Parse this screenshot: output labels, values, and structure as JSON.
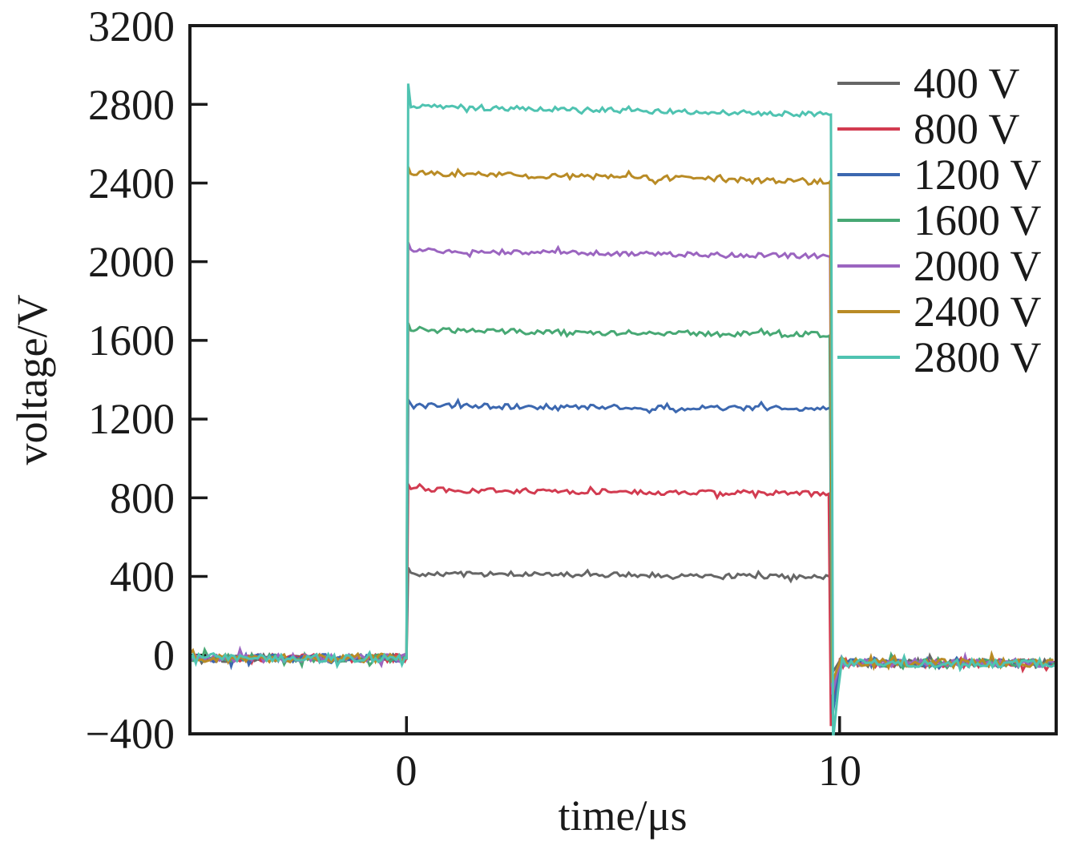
{
  "figure": {
    "background": "#ffffff",
    "axis_color": "#1a1a1a"
  },
  "chart_data": {
    "type": "line",
    "title": "",
    "xlabel": "time/μs",
    "ylabel": "voltage/V",
    "xlim": [
      -5,
      15
    ],
    "ylim": [
      -400,
      3200
    ],
    "grid": false,
    "legend_position": "upper right",
    "x_ticks": [
      0,
      10
    ],
    "x_tick_labels": [
      "0",
      "10"
    ],
    "y_ticks": [
      3200,
      2800,
      2400,
      2000,
      1600,
      1200,
      800,
      400,
      0,
      -400
    ],
    "y_tick_labels": [
      "3200",
      "2800",
      "2400",
      "2000",
      "1600",
      "1200",
      "800",
      "400",
      "0",
      "−400"
    ],
    "waveform_model": "square pulse: baseline_pre before t=0, rise with overshoot, drooping plateau, fall at pulse_end with undershoot, baseline_post after",
    "series": [
      {
        "name": "400 V",
        "color": "#666666",
        "nominal": 400,
        "baseline_pre": -15,
        "baseline_post": -40,
        "plateau_start": 415,
        "plateau_end": 400,
        "overshoot": 445,
        "undershoot": -90,
        "pulse_start": 0,
        "pulse_end": 9.78,
        "noise_pre": 20,
        "noise_plateau": 13,
        "noise_post": 20,
        "seed": 101
      },
      {
        "name": "800 V",
        "color": "#d23b50",
        "nominal": 800,
        "baseline_pre": -15,
        "baseline_post": -40,
        "plateau_start": 840,
        "plateau_end": 820,
        "overshoot": 868,
        "undershoot": -360,
        "pulse_start": 0,
        "pulse_end": 9.75,
        "noise_pre": 20,
        "noise_plateau": 13,
        "noise_post": 20,
        "seed": 202
      },
      {
        "name": "1200 V",
        "color": "#3c68b0",
        "nominal": 1200,
        "baseline_pre": -15,
        "baseline_post": -40,
        "plateau_start": 1268,
        "plateau_end": 1252,
        "overshoot": 1298,
        "undershoot": -300,
        "pulse_start": 0,
        "pulse_end": 9.79,
        "noise_pre": 20,
        "noise_plateau": 13,
        "noise_post": 20,
        "seed": 303
      },
      {
        "name": "1600 V",
        "color": "#47a874",
        "nominal": 1600,
        "baseline_pre": -15,
        "baseline_post": -40,
        "plateau_start": 1650,
        "plateau_end": 1628,
        "overshoot": 1688,
        "undershoot": -160,
        "pulse_start": 0,
        "pulse_end": 9.77,
        "noise_pre": 20,
        "noise_plateau": 14,
        "noise_post": 20,
        "seed": 404
      },
      {
        "name": "2000 V",
        "color": "#9b65c0",
        "nominal": 2000,
        "baseline_pre": -15,
        "baseline_post": -40,
        "plateau_start": 2055,
        "plateau_end": 2028,
        "overshoot": 2098,
        "undershoot": -200,
        "pulse_start": 0,
        "pulse_end": 9.78,
        "noise_pre": 20,
        "noise_plateau": 12,
        "noise_post": 20,
        "seed": 505
      },
      {
        "name": "2400 V",
        "color": "#b98b25",
        "nominal": 2400,
        "baseline_pre": -15,
        "baseline_post": -40,
        "plateau_start": 2450,
        "plateau_end": 2408,
        "overshoot": 2482,
        "undershoot": -140,
        "pulse_start": 0,
        "pulse_end": 9.78,
        "noise_pre": 22,
        "noise_plateau": 14,
        "noise_post": 22,
        "seed": 606
      },
      {
        "name": "2800 V",
        "color": "#4fc3b1",
        "nominal": 2800,
        "baseline_pre": -15,
        "baseline_post": -40,
        "plateau_start": 2790,
        "plateau_end": 2748,
        "overshoot": 2905,
        "undershoot": -430,
        "pulse_start": 0,
        "pulse_end": 9.8,
        "noise_pre": 20,
        "noise_plateau": 13,
        "noise_post": 20,
        "seed": 707
      }
    ]
  }
}
